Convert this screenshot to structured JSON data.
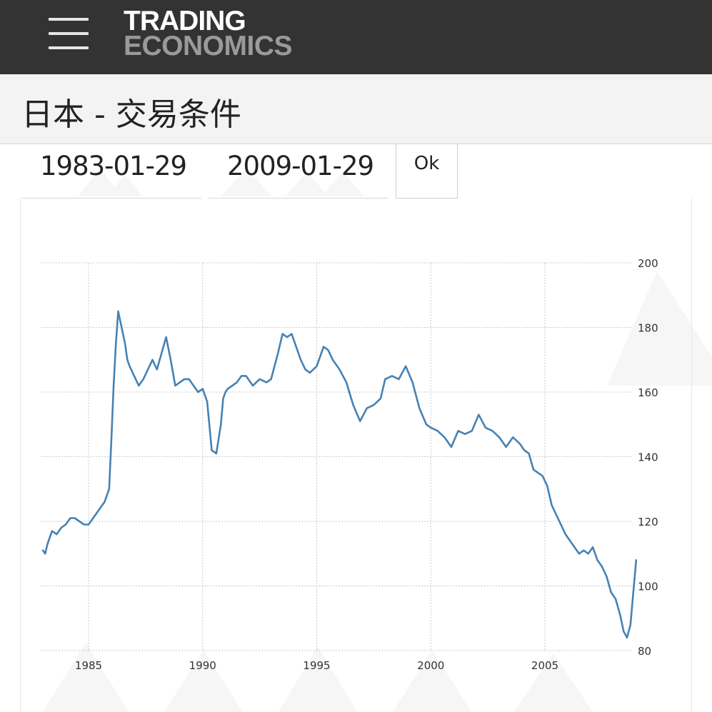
{
  "header": {
    "logo_line1": "TRADING",
    "logo_line2": "ECONOMICS",
    "menu_icon": "hamburger-menu-icon"
  },
  "page": {
    "title": "日本 - 交易条件"
  },
  "date_range": {
    "start": "1983-01-29",
    "end": "2009-01-29",
    "ok_label": "Ok"
  },
  "colors": {
    "header_bg": "#333333",
    "line": "#4682b4",
    "grid": "#c8c8c8"
  },
  "chart_data": {
    "type": "line",
    "title": "",
    "xlabel": "",
    "ylabel": "",
    "grid": true,
    "y_axis_position": "right",
    "xlim": [
      1983.0,
      2009.1
    ],
    "ylim": [
      80,
      200
    ],
    "x_ticks": [
      1985,
      1990,
      1995,
      2000,
      2005
    ],
    "y_ticks": [
      80,
      100,
      120,
      140,
      160,
      180,
      200
    ],
    "series": [
      {
        "x": [
          1983.0,
          1983.1,
          1983.2,
          1983.4,
          1983.6,
          1983.8,
          1984.0,
          1984.2,
          1984.4,
          1984.6,
          1984.8,
          1985.0,
          1985.1,
          1985.3,
          1985.5,
          1985.7,
          1985.9,
          1986.0,
          1986.1,
          1986.2,
          1986.3,
          1986.45,
          1986.6,
          1986.7,
          1986.8,
          1987.0,
          1987.2,
          1987.4,
          1987.6,
          1987.8,
          1988.0,
          1988.2,
          1988.4,
          1988.6,
          1988.8,
          1989.0,
          1989.2,
          1989.4,
          1989.6,
          1989.8,
          1990.0,
          1990.2,
          1990.4,
          1990.6,
          1990.8,
          1990.9,
          1991.0,
          1991.1,
          1991.3,
          1991.5,
          1991.7,
          1991.9,
          1992.2,
          1992.5,
          1992.8,
          1993.0,
          1993.3,
          1993.5,
          1993.7,
          1993.9,
          1994.1,
          1994.3,
          1994.5,
          1994.7,
          1995.0,
          1995.3,
          1995.5,
          1995.7,
          1996.0,
          1996.3,
          1996.6,
          1996.9,
          1997.2,
          1997.5,
          1997.8,
          1998.0,
          1998.3,
          1998.6,
          1998.9,
          1999.2,
          1999.5,
          1999.8,
          2000.0,
          2000.3,
          2000.6,
          2000.9,
          2001.2,
          2001.5,
          2001.8,
          2002.1,
          2002.4,
          2002.7,
          2003.0,
          2003.3,
          2003.6,
          2003.9,
          2004.1,
          2004.3,
          2004.5,
          2004.7,
          2004.9,
          2005.1,
          2005.3,
          2005.5,
          2005.7,
          2005.9,
          2006.1,
          2006.3,
          2006.5,
          2006.7,
          2006.9,
          2007.1,
          2007.3,
          2007.5,
          2007.7,
          2007.9,
          2008.1,
          2008.3,
          2008.45,
          2008.6,
          2008.75,
          2008.85,
          2009.0
        ],
        "values": [
          111,
          110,
          113,
          117,
          116,
          118,
          119,
          121,
          121,
          120,
          119,
          119,
          120,
          122,
          124,
          126,
          130,
          145,
          162,
          175,
          185,
          180,
          175,
          170,
          168,
          165,
          162,
          164,
          167,
          170,
          167,
          172,
          177,
          170,
          162,
          163,
          164,
          164,
          162,
          160,
          161,
          157,
          142,
          141,
          150,
          158,
          160,
          161,
          162,
          163,
          165,
          165,
          162,
          164,
          163,
          164,
          172,
          178,
          177,
          178,
          174,
          170,
          167,
          166,
          168,
          174,
          173,
          170,
          167,
          163,
          156,
          151,
          155,
          156,
          158,
          164,
          165,
          164,
          168,
          163,
          155,
          150,
          149,
          148,
          146,
          143,
          148,
          147,
          148,
          153,
          149,
          148,
          146,
          143,
          146,
          144,
          142,
          141,
          136,
          135,
          134,
          131,
          125,
          122,
          119,
          116,
          114,
          112,
          110,
          111,
          110,
          112,
          108,
          106,
          103,
          98,
          96,
          91,
          86,
          84,
          88,
          96,
          108
        ]
      }
    ]
  }
}
